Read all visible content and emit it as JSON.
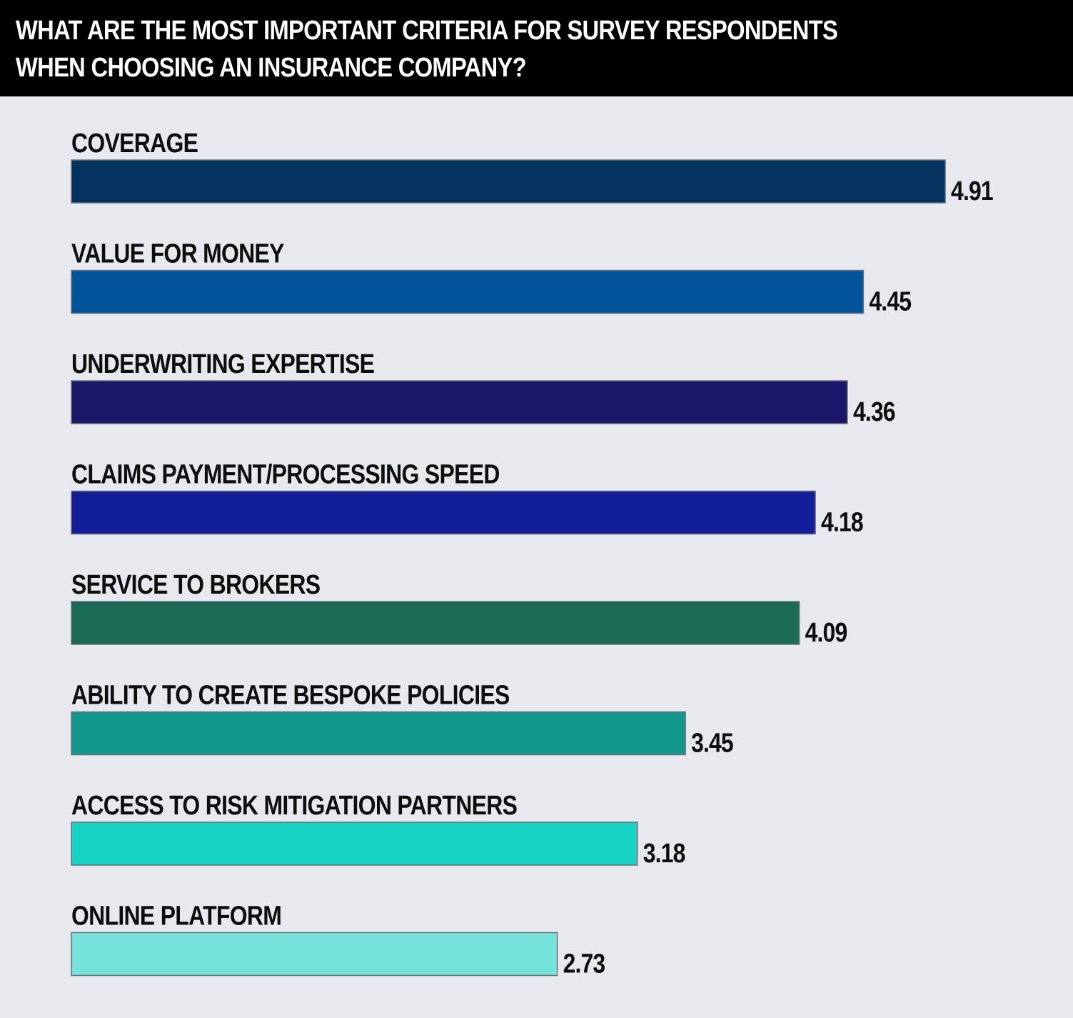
{
  "header": {
    "title": "WHAT ARE THE MOST IMPORTANT CRITERIA FOR SURVEY RESPONDENTS WHEN CHOOSING AN INSURANCE COMPANY?"
  },
  "chart_data": {
    "type": "bar",
    "orientation": "horizontal",
    "title": "WHAT ARE THE MOST IMPORTANT CRITERIA FOR SURVEY RESPONDENTS WHEN CHOOSING AN INSURANCE COMPANY?",
    "categories": [
      "COVERAGE",
      "VALUE FOR MONEY",
      "UNDERWRITING EXPERTISE",
      "CLAIMS PAYMENT/PROCESSING SPEED",
      "SERVICE TO BROKERS",
      "ABILITY TO CREATE BESPOKE POLICIES",
      "ACCESS TO RISK MITIGATION PARTNERS",
      "ONLINE PLATFORM"
    ],
    "values": [
      4.91,
      4.45,
      4.36,
      4.18,
      4.09,
      3.45,
      3.18,
      2.73
    ],
    "value_labels": [
      "4.91",
      "4.45",
      "4.36",
      "4.18",
      "4.09",
      "3.45",
      "3.18",
      "2.73"
    ],
    "colors": [
      "#04335f",
      "#02549a",
      "#1a176a",
      "#121d99",
      "#1b6b57",
      "#13998b",
      "#16d2c2",
      "#75e3dc"
    ],
    "xlim": [
      0,
      5
    ],
    "grid": false,
    "legend": "none"
  }
}
